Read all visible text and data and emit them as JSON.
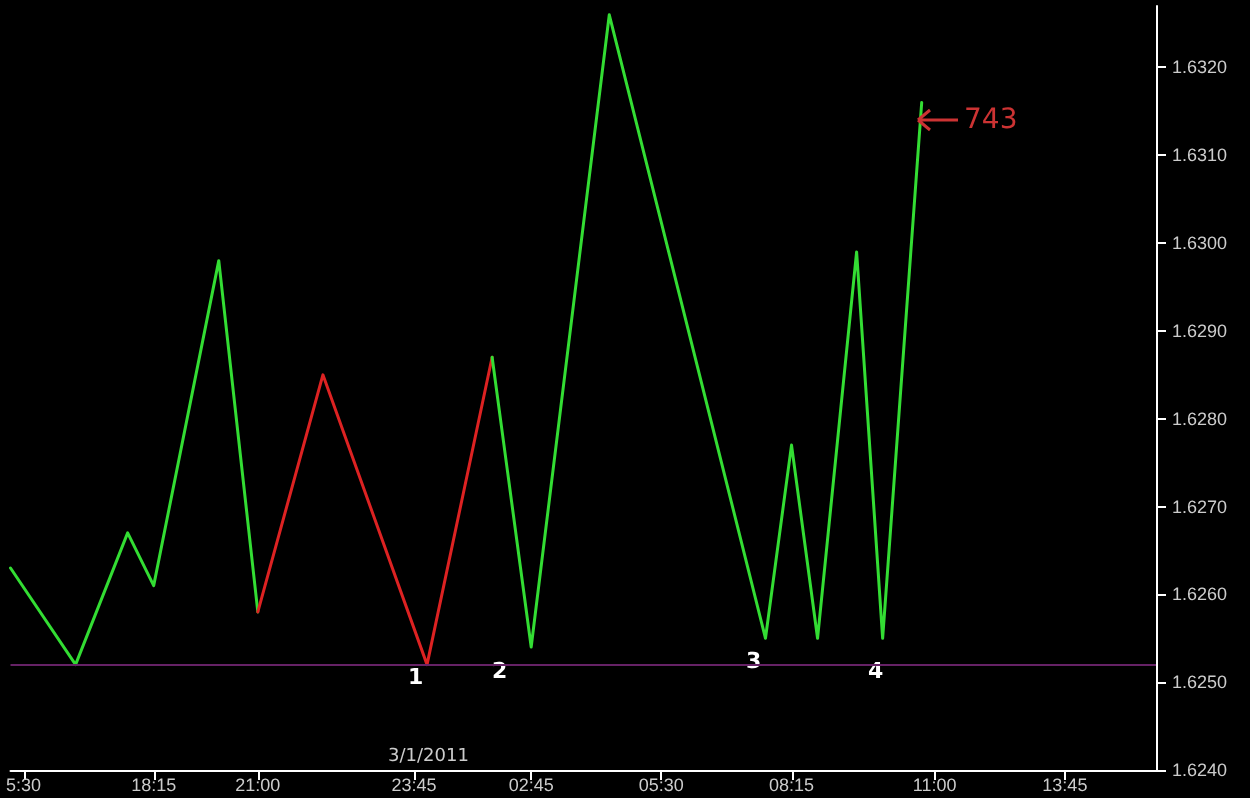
{
  "chart_data": {
    "type": "line",
    "categories": [
      null,
      "5:30",
      null,
      null,
      null,
      null,
      null,
      null,
      null,
      null,
      null,
      "18:15",
      null,
      null,
      null,
      null,
      null,
      null,
      null,
      "21:00",
      null,
      null,
      null,
      null,
      null,
      null,
      null,
      null,
      null,
      null,
      null,
      "23:45",
      null,
      null,
      null,
      null,
      null,
      null,
      null,
      null,
      "02:45",
      null,
      null,
      null,
      null,
      null,
      null,
      null,
      null,
      null,
      "05:30",
      null,
      null,
      null,
      null,
      null,
      null,
      null,
      null,
      null,
      "08:15",
      null,
      null,
      null,
      null,
      null,
      null,
      null,
      null,
      null,
      null,
      "11:00",
      null,
      null,
      null,
      null,
      null,
      null,
      null,
      null,
      null,
      "13:45",
      null,
      null,
      null,
      null,
      null,
      null,
      null
    ],
    "series": [
      {
        "color": "#33dd33",
        "values": [
          1.6263,
          null,
          null,
          null,
          null,
          1.6252,
          null,
          null,
          null,
          1.6267,
          null,
          1.6261,
          null,
          null,
          null,
          null,
          1.6298,
          null,
          null,
          1.6258,
          null,
          null,
          null,
          null,
          null,
          null,
          null,
          null,
          null,
          null,
          null,
          null,
          null,
          null,
          null,
          null,
          null,
          null,
          null,
          null,
          null,
          null,
          null,
          null,
          null,
          null,
          null,
          null,
          null,
          null,
          null,
          null,
          null,
          null,
          null,
          null,
          null,
          null,
          null,
          null,
          null,
          null,
          null,
          null,
          null,
          null,
          null,
          null,
          null,
          null,
          null,
          null,
          null,
          null,
          null,
          null,
          null,
          null,
          null,
          null,
          null,
          null,
          null,
          null,
          null,
          null,
          null,
          null,
          null
        ]
      },
      {
        "color": "#dd2222",
        "values": [
          null,
          null,
          null,
          null,
          null,
          null,
          null,
          null,
          null,
          null,
          null,
          null,
          null,
          null,
          null,
          null,
          null,
          null,
          null,
          1.6258,
          null,
          null,
          null,
          null,
          1.6285,
          null,
          null,
          null,
          null,
          null,
          null,
          null,
          1.6252,
          null,
          null,
          null,
          null,
          1.6287,
          null,
          null,
          null,
          null,
          null,
          null,
          null,
          null,
          null,
          null,
          null,
          null,
          null,
          null,
          null,
          null,
          null,
          null,
          null,
          null,
          null,
          null,
          null,
          null,
          null,
          null,
          null,
          null,
          null,
          null,
          null,
          null,
          null,
          null,
          null,
          null,
          null,
          null,
          null,
          null,
          null,
          null,
          null,
          null,
          null,
          null,
          null,
          null,
          null,
          null,
          null
        ]
      },
      {
        "color": "#33dd33",
        "values": [
          null,
          null,
          null,
          null,
          null,
          null,
          null,
          null,
          null,
          null,
          null,
          null,
          null,
          null,
          null,
          null,
          null,
          null,
          null,
          null,
          null,
          null,
          null,
          null,
          null,
          null,
          null,
          null,
          null,
          null,
          null,
          null,
          null,
          null,
          null,
          null,
          null,
          1.6287,
          null,
          null,
          1.6254,
          null,
          null,
          null,
          null,
          null,
          1.6326,
          null,
          null,
          null,
          null,
          null,
          null,
          null,
          null,
          null,
          null,
          null,
          1.6255,
          null,
          1.6277,
          null,
          1.6255,
          null,
          null,
          1.6299,
          null,
          1.6255,
          null,
          null,
          1.6316,
          null,
          null,
          null,
          null,
          null,
          null,
          null,
          null,
          null,
          null,
          null,
          null,
          null,
          null,
          null,
          null,
          null,
          null
        ]
      }
    ],
    "ylim": [
      1.624,
      1.6327
    ],
    "yticks": [
      {
        "value": 1.624,
        "label": "1.6240"
      },
      {
        "value": 1.625,
        "label": "1.6250"
      },
      {
        "value": 1.626,
        "label": "1.6260"
      },
      {
        "value": 1.627,
        "label": "1.6270"
      },
      {
        "value": 1.628,
        "label": "1.6280"
      },
      {
        "value": 1.629,
        "label": "1.6290"
      },
      {
        "value": 1.63,
        "label": "1.6300"
      },
      {
        "value": 1.631,
        "label": "1.6310"
      },
      {
        "value": 1.632,
        "label": "1.6320"
      }
    ],
    "ref_lines": [
      {
        "axis": "y",
        "value": 1.6252,
        "color": "#662266"
      }
    ],
    "annotations": [
      "1",
      "2",
      "3",
      "4",
      "743",
      "3/1/2011"
    ],
    "grid": false,
    "marker": "none",
    "line_style": "solid"
  }
}
